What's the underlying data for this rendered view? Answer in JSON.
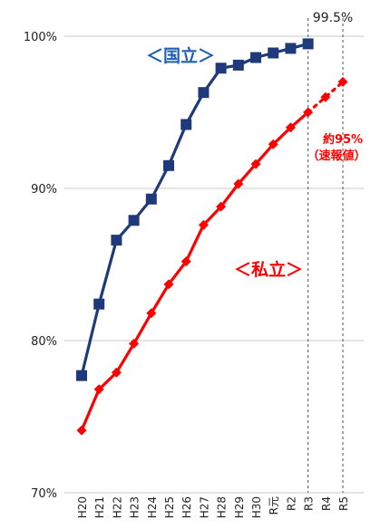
{
  "chart_data": {
    "type": "line",
    "categories": [
      "H20",
      "H21",
      "H22",
      "H23",
      "H24",
      "H25",
      "H26",
      "H27",
      "H28",
      "H29",
      "H30",
      "R元",
      "R2",
      "R3",
      "R4",
      "R5"
    ],
    "yticks": [
      "70%",
      "80%",
      "90%",
      "100%"
    ],
    "ylim": [
      70,
      100.8
    ],
    "grid": true,
    "series": [
      {
        "name": "＜国立＞",
        "color": "#1f3a7a",
        "marker": "square",
        "values": [
          77.7,
          82.4,
          86.6,
          87.9,
          89.3,
          91.5,
          94.2,
          96.3,
          97.9,
          98.1,
          98.6,
          98.9,
          99.2,
          99.5,
          null,
          null
        ]
      },
      {
        "name": "＜私立＞",
        "color": "#ff0000",
        "marker": "diamond",
        "values": [
          74.1,
          76.8,
          77.9,
          79.8,
          81.8,
          83.7,
          85.2,
          87.6,
          88.8,
          90.3,
          91.6,
          92.9,
          94.0,
          95.0,
          96.0,
          97.0
        ],
        "dotted_from_index": 13
      }
    ],
    "annotations": {
      "national_value": "99.5%",
      "private_estimate_line1": "約95%",
      "private_estimate_line2": "（速報値）"
    },
    "vertical_dashed_at": [
      "R3",
      "R5"
    ]
  }
}
